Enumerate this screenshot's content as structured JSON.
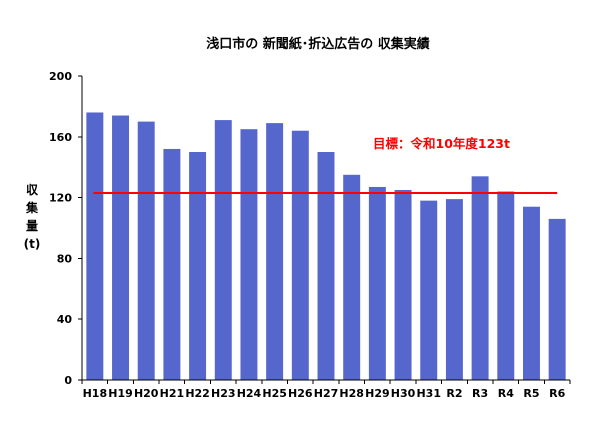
{
  "chart_data": {
    "type": "bar",
    "title": "浅口市の 新聞紙･折込広告の 収集実績",
    "xlabel": "",
    "ylabel": "収集量(t)",
    "categories": [
      "H18",
      "H19",
      "H20",
      "H21",
      "H22",
      "H23",
      "H24",
      "H25",
      "H26",
      "H27",
      "H28",
      "H29",
      "H30",
      "H31",
      "R2",
      "R3",
      "R4",
      "R5",
      "R6"
    ],
    "values": [
      176,
      174,
      170,
      152,
      150,
      171,
      165,
      169,
      164,
      150,
      135,
      127,
      125,
      118,
      119,
      134,
      124,
      114,
      106
    ],
    "ylim": [
      0,
      200
    ],
    "yticks": [
      0,
      40,
      80,
      120,
      160,
      200
    ],
    "grid": false,
    "legend": "none",
    "bar_color": "#5566CC",
    "target": {
      "value": 123,
      "label": "目標：令和10年度123t",
      "color": "#FF0000"
    }
  }
}
